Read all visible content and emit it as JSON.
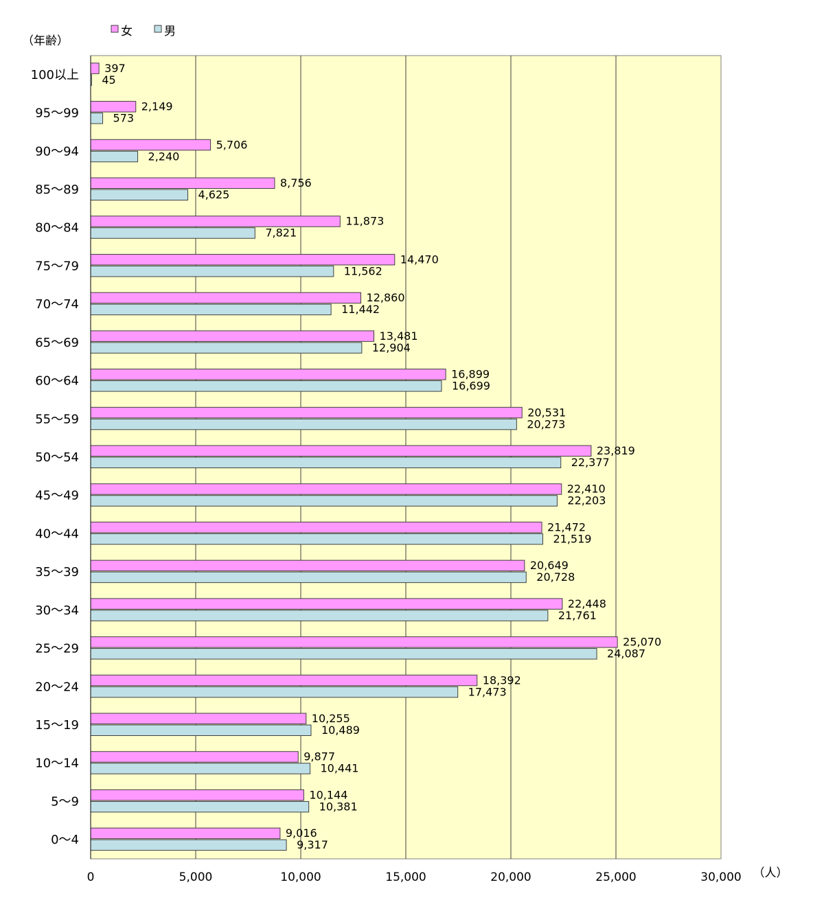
{
  "chart_data": {
    "type": "bar",
    "orientation": "horizontal",
    "categories": [
      "0～4",
      "5～9",
      "10～14",
      "15～19",
      "20～24",
      "25～29",
      "30～34",
      "35～39",
      "40～44",
      "45～49",
      "50～54",
      "55～59",
      "60～64",
      "65～69",
      "70～74",
      "75～79",
      "80～84",
      "85～89",
      "90～94",
      "95～99",
      "100以上"
    ],
    "series": [
      {
        "name": "女",
        "color": "#ff99ff",
        "values": [
          9016,
          10144,
          9877,
          10255,
          18392,
          25070,
          22448,
          20649,
          21472,
          22410,
          23819,
          20531,
          16899,
          13481,
          12860,
          14470,
          11873,
          8756,
          5706,
          2149,
          397
        ],
        "labels": [
          "9,016",
          "10,144",
          "9,877",
          "10,255",
          "18,392",
          "25,070",
          "22,448",
          "20,649",
          "21,472",
          "22,410",
          "23,819",
          "20,531",
          "16,899",
          "13,481",
          "12,860",
          "14,470",
          "11,873",
          "8,756",
          "5,706",
          "2,149",
          "397"
        ]
      },
      {
        "name": "男",
        "color": "#bfe0e6",
        "values": [
          9317,
          10381,
          10441,
          10489,
          17473,
          24087,
          21761,
          20728,
          21519,
          22203,
          22377,
          20273,
          16699,
          12904,
          11442,
          11562,
          7821,
          4625,
          2240,
          573,
          45
        ],
        "labels": [
          "9,317",
          "10,381",
          "10,441",
          "10,489",
          "17,473",
          "24,087",
          "21,761",
          "20,728",
          "21,519",
          "22,203",
          "22,377",
          "20,273",
          "16,699",
          "12,904",
          "11,442",
          "11,562",
          "7,821",
          "4,625",
          "2,240",
          "573",
          "45"
        ]
      }
    ],
    "xlim": [
      0,
      30000
    ],
    "xticks": [
      0,
      5000,
      10000,
      15000,
      20000,
      25000,
      30000
    ],
    "xtick_labels": [
      "0",
      "5,000",
      "10,000",
      "15,000",
      "20,000",
      "25,000",
      "30,000"
    ],
    "xlabel": "（人）",
    "ylabel": "（年齢）",
    "legend": "top-left",
    "grid": "vertical",
    "plot_background": "#ffffcc"
  }
}
